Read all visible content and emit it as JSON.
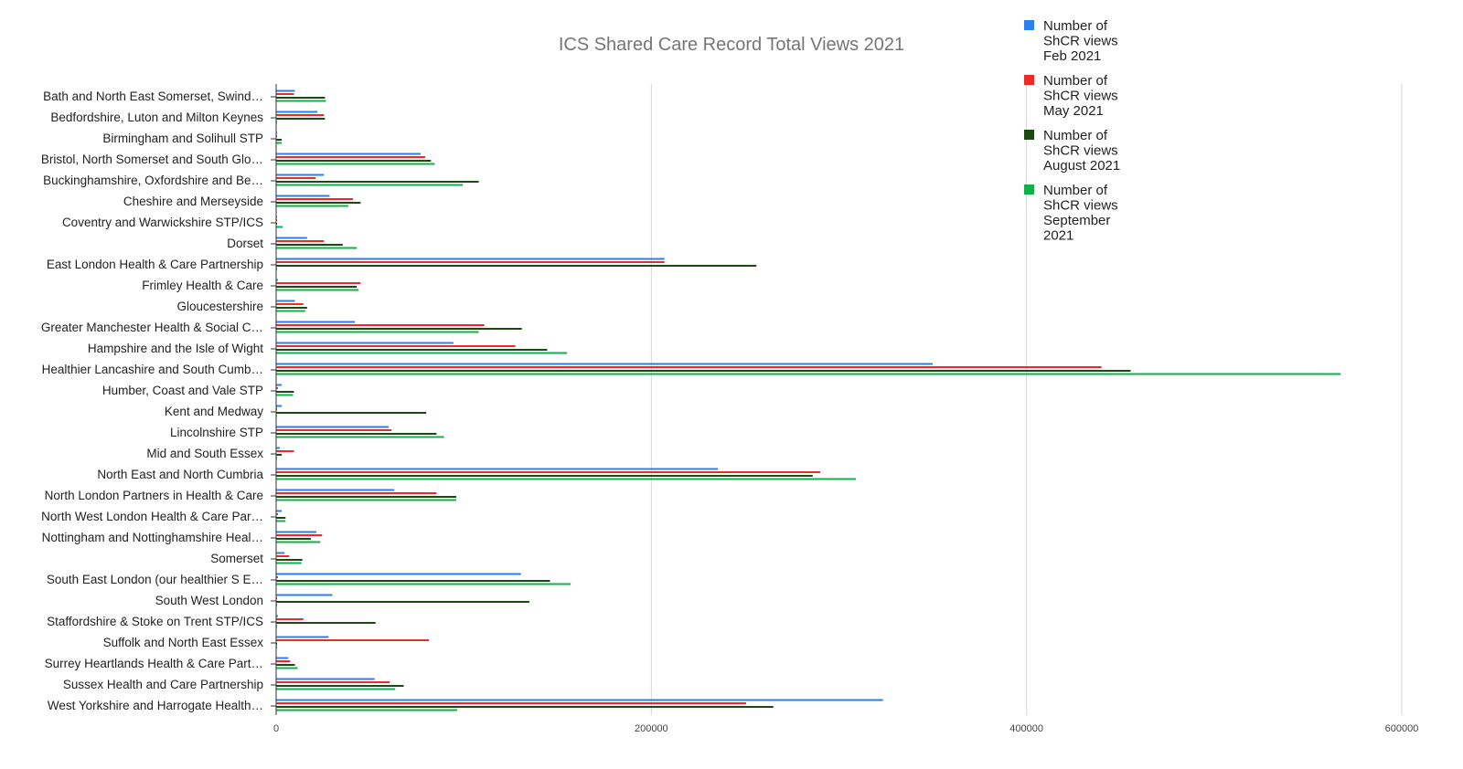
{
  "chart_data": {
    "type": "bar",
    "orientation": "horizontal",
    "title": "ICS Shared Care Record Total Views 2021",
    "xlabel": "",
    "ylabel": "",
    "xlim": [
      0,
      600000
    ],
    "xticks": [
      "0",
      "200000",
      "400000",
      "600000"
    ],
    "grid": true,
    "legend_position": "top-right",
    "categories": [
      "Bath and North East Somerset, Swind…",
      "Bedfordshire, Luton and Milton Keynes",
      "Birmingham and Solihull STP",
      "Bristol, North Somerset and South Glo…",
      "Buckinghamshire, Oxfordshire and Be…",
      "Cheshire and Merseyside",
      "Coventry and Warwickshire STP/ICS",
      "Dorset",
      "East London Health & Care Partnership",
      "Frimley Health & Care",
      "Gloucestershire",
      "Greater Manchester Health & Social C…",
      "Hampshire and the Isle of Wight",
      "Healthier Lancashire and South Cumb…",
      "Humber, Coast and Vale STP",
      "Kent and Medway",
      "Lincolnshire STP",
      "Mid and South Essex",
      "North East and North Cumbria",
      "North London Partners in Health & Care",
      "North West London Health & Care Par…",
      "Nottingham and Nottinghamshire Heal…",
      "Somerset",
      "South East London (our healthier S E…",
      "South West London",
      "Staffordshire & Stoke on Trent STP/ICS",
      "Suffolk and North East Essex",
      "Surrey Heartlands Health & Care Part…",
      "Sussex Health and Care Partnership",
      "West Yorkshire and Harrogate Health…"
    ],
    "series": [
      {
        "name": "Number of ShCR views Feb 2021",
        "legend_lines": [
          "Number of",
          "ShCR views",
          "Feb 2021"
        ],
        "color": "#2a7ff0",
        "values": [
          10000,
          22000,
          500,
          77000,
          25500,
          28500,
          500,
          16500,
          207000,
          1000,
          10000,
          42000,
          94500,
          350000,
          3000,
          3000,
          60000,
          2000,
          235500,
          63000,
          3000,
          21500,
          4500,
          130500,
          30000,
          1000,
          28000,
          6500,
          52500,
          323500
        ]
      },
      {
        "name": "Number of ShCR views May 2021",
        "legend_lines": [
          "Number of",
          "ShCR views",
          "May 2021"
        ],
        "color": "#ee2a24",
        "values": [
          9500,
          25500,
          500,
          79500,
          21000,
          41000,
          500,
          25500,
          207000,
          45000,
          14500,
          111000,
          127500,
          440000,
          1000,
          500,
          61500,
          9500,
          290000,
          85500,
          1000,
          24500,
          7000,
          1000,
          500,
          14500,
          81500,
          7500,
          60500,
          250500
        ]
      },
      {
        "name": "Number of ShCR views August 2021",
        "legend_lines": [
          "Number of",
          "ShCR views",
          "August 2021"
        ],
        "color": "#1a4a12",
        "values": [
          26000,
          26000,
          3000,
          82500,
          108000,
          45000,
          500,
          35500,
          256000,
          43000,
          16500,
          131000,
          144500,
          455500,
          9500,
          80000,
          85500,
          3000,
          286000,
          96000,
          5000,
          18500,
          14000,
          146000,
          135000,
          53000,
          500,
          10000,
          68000,
          265000
        ]
      },
      {
        "name": "Number of ShCR views September 2021",
        "legend_lines": [
          "Number of",
          "ShCR views",
          "September",
          "2021"
        ],
        "color": "#12b04a",
        "values": [
          26500,
          500,
          3000,
          84500,
          99500,
          38500,
          3500,
          43000,
          500,
          44000,
          15500,
          108000,
          155000,
          567500,
          9000,
          500,
          89500,
          500,
          309000,
          96000,
          5000,
          23500,
          13500,
          157000,
          500,
          500,
          500,
          11500,
          63500,
          96500
        ]
      }
    ]
  }
}
